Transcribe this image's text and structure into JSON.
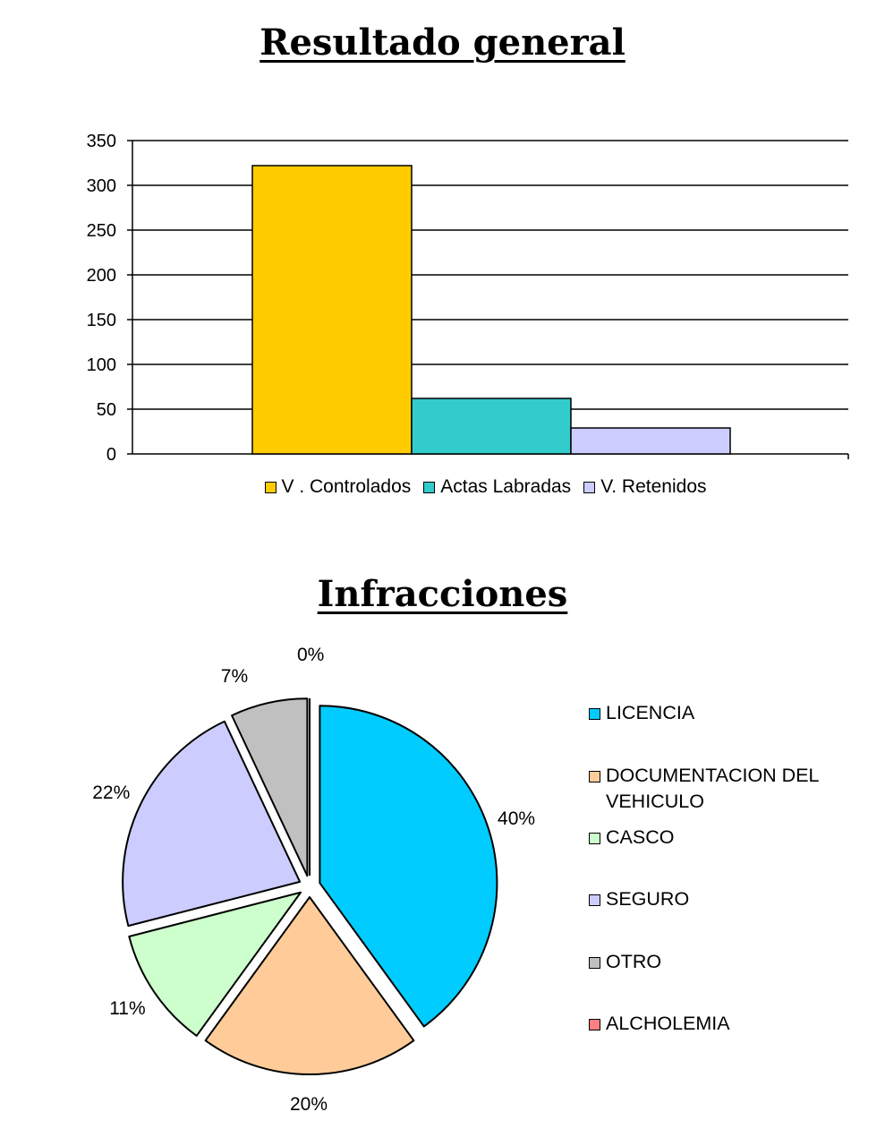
{
  "charts": {
    "bar_title": "Resultado general",
    "pie_title": "Infracciones"
  },
  "chart_data": [
    {
      "type": "bar",
      "title": "Resultado general",
      "categories": [
        ""
      ],
      "series": [
        {
          "name": "V . Controlados",
          "values": [
            322
          ],
          "color": "#FFCC00"
        },
        {
          "name": "Actas Labradas",
          "values": [
            62
          ],
          "color": "#33CCCC"
        },
        {
          "name": "V. Retenidos",
          "values": [
            29
          ],
          "color": "#CCCCFF"
        }
      ],
      "ylim": [
        0,
        350
      ],
      "yticks": [
        0,
        50,
        100,
        150,
        200,
        250,
        300,
        350
      ],
      "xlabel": "",
      "ylabel": "",
      "grid": true,
      "legend": "bottom"
    },
    {
      "type": "pie",
      "title": "Infracciones",
      "labels": [
        "LICENCIA",
        "DOCUMENTACION DEL VEHICULO",
        "CASCO",
        "SEGURO",
        "OTRO",
        "ALCHOLEMIA"
      ],
      "values": [
        40,
        20,
        11,
        22,
        7,
        0
      ],
      "value_labels": [
        "40%",
        "20%",
        "11%",
        "22%",
        "7%",
        "0%"
      ],
      "colors": [
        "#00CCFF",
        "#FFCC99",
        "#CCFFCC",
        "#CCCCFF",
        "#C0C0C0",
        "#FF8080"
      ],
      "exploded": true,
      "legend": "right"
    }
  ]
}
